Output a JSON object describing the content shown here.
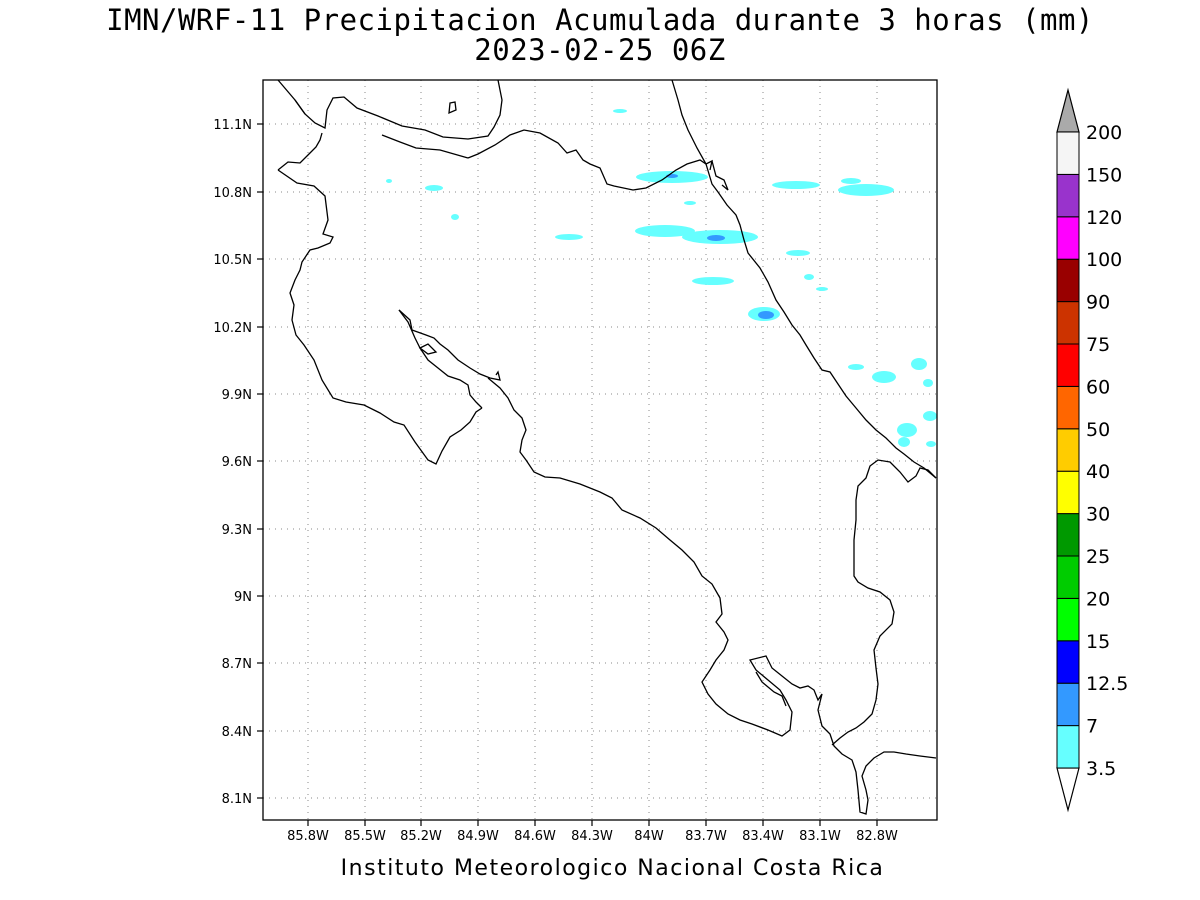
{
  "title_line1": "IMN/WRF-11 Precipitacion Acumulada durante 3 horas (mm)",
  "title_line2": "2023-02-25 06Z",
  "footer": "Instituto Meteorologico Nacional Costa Rica",
  "map": {
    "lon_range": [
      -86.0,
      -82.6
    ],
    "lat_range": [
      8.0,
      11.3
    ],
    "lon_ticks": [
      "85.8W",
      "85.5W",
      "85.2W",
      "84.9W",
      "84.6W",
      "84.3W",
      "84W",
      "83.7W",
      "83.4W",
      "83.1W",
      "82.8W"
    ],
    "lat_ticks": [
      "8.1N",
      "8.4N",
      "8.7N",
      "9N",
      "9.3N",
      "9.6N",
      "9.9N",
      "10.2N",
      "10.5N",
      "10.8N",
      "11.1N"
    ],
    "grid": "dotted"
  },
  "colorbar": {
    "levels": [
      "3.5",
      "7",
      "12.5",
      "15",
      "20",
      "25",
      "30",
      "40",
      "50",
      "60",
      "75",
      "90",
      "100",
      "120",
      "150",
      "200"
    ],
    "colors": [
      "#66ffff",
      "#3399ff",
      "#0000ff",
      "#00ff00",
      "#00cc00",
      "#009900",
      "#ffff00",
      "#ffcc00",
      "#ff6600",
      "#ff0000",
      "#cc3300",
      "#990000",
      "#ff00ff",
      "#9933cc",
      "#f5f5f5",
      "#aaaaaa"
    ]
  },
  "legend_icons": [
    "colorbar-bottom-arrow",
    "colorbar-top-arrow"
  ]
}
